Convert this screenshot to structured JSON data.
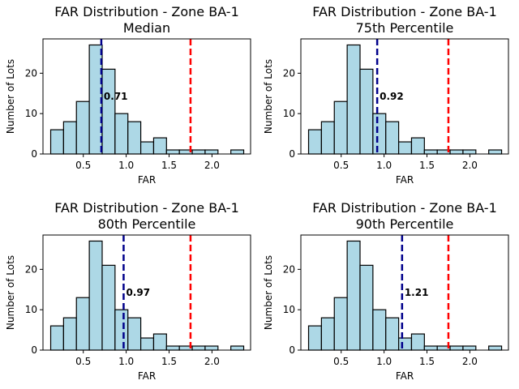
{
  "chart_data": [
    {
      "type": "bar",
      "title": "FAR Distribution - Zone BA-1",
      "subtitle": "Median",
      "xlabel": "FAR",
      "ylabel": "Number of Lots",
      "xlim": [
        0.03,
        2.45
      ],
      "ylim": [
        0,
        28.5
      ],
      "xticks": [
        "0.5",
        "1.0",
        "1.5",
        "2.0"
      ],
      "yticks": [
        "0",
        "10",
        "20"
      ],
      "bin_edges": [
        0.12,
        0.27,
        0.42,
        0.57,
        0.72,
        0.87,
        1.02,
        1.17,
        1.32,
        1.47,
        1.62,
        1.77,
        1.92,
        2.07,
        2.22,
        2.37
      ],
      "values": [
        6,
        8,
        13,
        27,
        21,
        10,
        8,
        3,
        4,
        1,
        1,
        1,
        1,
        0,
        1
      ],
      "percentile_line": {
        "value": 0.71,
        "label": "0.71",
        "color": "#00008b"
      },
      "reference_line": {
        "value": 1.75,
        "color": "#ff0000"
      },
      "bar_color": "#add8e6",
      "grid": false
    },
    {
      "type": "bar",
      "title": "FAR Distribution - Zone BA-1",
      "subtitle": "75th Percentile",
      "xlabel": "FAR",
      "ylabel": "Number of Lots",
      "xlim": [
        0.03,
        2.45
      ],
      "ylim": [
        0,
        28.5
      ],
      "xticks": [
        "0.5",
        "1.0",
        "1.5",
        "2.0"
      ],
      "yticks": [
        "0",
        "10",
        "20"
      ],
      "bin_edges": [
        0.12,
        0.27,
        0.42,
        0.57,
        0.72,
        0.87,
        1.02,
        1.17,
        1.32,
        1.47,
        1.62,
        1.77,
        1.92,
        2.07,
        2.22,
        2.37
      ],
      "values": [
        6,
        8,
        13,
        27,
        21,
        10,
        8,
        3,
        4,
        1,
        1,
        1,
        1,
        0,
        1
      ],
      "percentile_line": {
        "value": 0.92,
        "label": "0.92",
        "color": "#00008b"
      },
      "reference_line": {
        "value": 1.75,
        "color": "#ff0000"
      },
      "bar_color": "#add8e6",
      "grid": false
    },
    {
      "type": "bar",
      "title": "FAR Distribution - Zone BA-1",
      "subtitle": "80th Percentile",
      "xlabel": "FAR",
      "ylabel": "Number of Lots",
      "xlim": [
        0.03,
        2.45
      ],
      "ylim": [
        0,
        28.5
      ],
      "xticks": [
        "0.5",
        "1.0",
        "1.5",
        "2.0"
      ],
      "yticks": [
        "0",
        "10",
        "20"
      ],
      "bin_edges": [
        0.12,
        0.27,
        0.42,
        0.57,
        0.72,
        0.87,
        1.02,
        1.17,
        1.32,
        1.47,
        1.62,
        1.77,
        1.92,
        2.07,
        2.22,
        2.37
      ],
      "values": [
        6,
        8,
        13,
        27,
        21,
        10,
        8,
        3,
        4,
        1,
        1,
        1,
        1,
        0,
        1
      ],
      "percentile_line": {
        "value": 0.97,
        "label": "0.97",
        "color": "#00008b"
      },
      "reference_line": {
        "value": 1.75,
        "color": "#ff0000"
      },
      "bar_color": "#add8e6",
      "grid": false
    },
    {
      "type": "bar",
      "title": "FAR Distribution - Zone BA-1",
      "subtitle": "90th Percentile",
      "xlabel": "FAR",
      "ylabel": "Number of Lots",
      "xlim": [
        0.03,
        2.45
      ],
      "ylim": [
        0,
        28.5
      ],
      "xticks": [
        "0.5",
        "1.0",
        "1.5",
        "2.0"
      ],
      "yticks": [
        "0",
        "10",
        "20"
      ],
      "bin_edges": [
        0.12,
        0.27,
        0.42,
        0.57,
        0.72,
        0.87,
        1.02,
        1.17,
        1.32,
        1.47,
        1.62,
        1.77,
        1.92,
        2.07,
        2.22,
        2.37
      ],
      "values": [
        6,
        8,
        13,
        27,
        21,
        10,
        8,
        3,
        4,
        1,
        1,
        1,
        1,
        0,
        1
      ],
      "percentile_line": {
        "value": 1.21,
        "label": "1.21",
        "color": "#00008b"
      },
      "reference_line": {
        "value": 1.75,
        "color": "#ff0000"
      },
      "bar_color": "#add8e6",
      "grid": false
    }
  ]
}
